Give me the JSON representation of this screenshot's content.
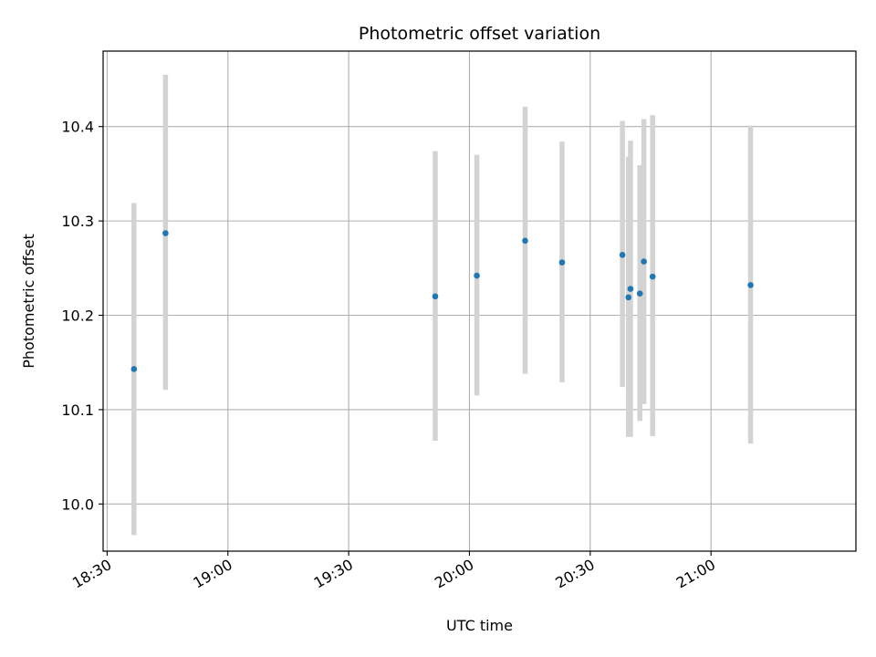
{
  "chart_data": {
    "type": "scatter",
    "title": "Photometric offset variation",
    "xlabel": "UTC time",
    "ylabel": "Photometric offset",
    "x_is_time": true,
    "xlim": [
      "18:29",
      "21:36"
    ],
    "ylim": [
      9.95,
      10.48
    ],
    "xticks": [
      "18:30",
      "19:00",
      "19:30",
      "20:00",
      "20:30",
      "21:00"
    ],
    "yticks": [
      10.0,
      10.1,
      10.2,
      10.3,
      10.4
    ],
    "grid": true,
    "marker_color": "#1f77b4",
    "errorbar_color": "#d3d3d3",
    "points": [
      {
        "x": "18:36:40",
        "y": 10.143,
        "ymin": 9.967,
        "ymax": 10.319
      },
      {
        "x": "18:44:30",
        "y": 10.287,
        "ymin": 10.121,
        "ymax": 10.455
      },
      {
        "x": "19:51:30",
        "y": 10.22,
        "ymin": 10.067,
        "ymax": 10.374
      },
      {
        "x": "20:01:50",
        "y": 10.242,
        "ymin": 10.115,
        "ymax": 10.37
      },
      {
        "x": "20:13:50",
        "y": 10.279,
        "ymin": 10.138,
        "ymax": 10.421
      },
      {
        "x": "20:23:00",
        "y": 10.256,
        "ymin": 10.129,
        "ymax": 10.384
      },
      {
        "x": "20:38:00",
        "y": 10.264,
        "ymin": 10.124,
        "ymax": 10.406
      },
      {
        "x": "20:39:30",
        "y": 10.219,
        "ymin": 10.071,
        "ymax": 10.368
      },
      {
        "x": "20:40:00",
        "y": 10.228,
        "ymin": 10.071,
        "ymax": 10.385
      },
      {
        "x": "20:42:20",
        "y": 10.223,
        "ymin": 10.088,
        "ymax": 10.359
      },
      {
        "x": "20:43:20",
        "y": 10.257,
        "ymin": 10.106,
        "ymax": 10.408
      },
      {
        "x": "20:45:30",
        "y": 10.241,
        "ymin": 10.072,
        "ymax": 10.412
      },
      {
        "x": "21:09:50",
        "y": 10.232,
        "ymin": 10.064,
        "ymax": 10.401
      }
    ]
  }
}
